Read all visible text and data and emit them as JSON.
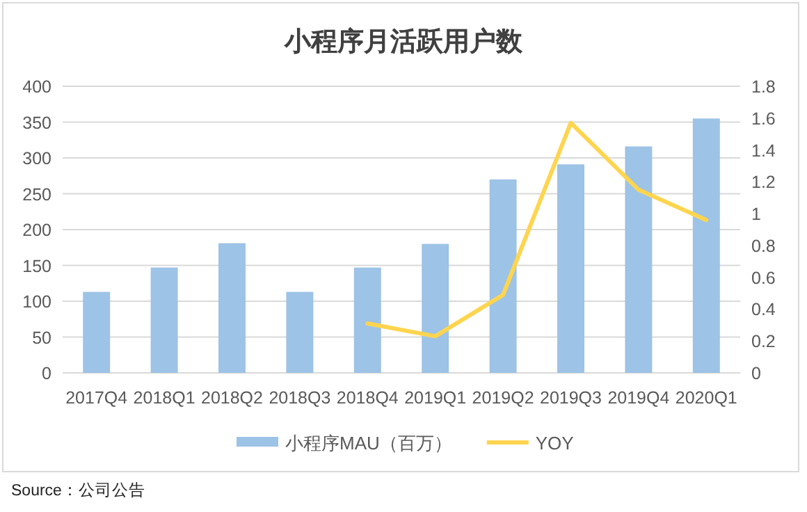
{
  "chart_data": {
    "type": "bar",
    "title": "小程序月活跃用户数",
    "categories": [
      "2017Q4",
      "2018Q1",
      "2018Q2",
      "2018Q3",
      "2018Q4",
      "2019Q1",
      "2019Q2",
      "2019Q3",
      "2019Q4",
      "2020Q1"
    ],
    "series": [
      {
        "name": "小程序MAU（百万）",
        "color": "#9dc3e6",
        "values": [
          113,
          147,
          181,
          113,
          147,
          180,
          270,
          291,
          316,
          355
        ]
      },
      {
        "name": "YOY",
        "type": "line",
        "axis": "y2",
        "color": "#ffd54f",
        "values": [
          null,
          null,
          null,
          null,
          0.31,
          0.23,
          0.49,
          1.57,
          1.15,
          0.96
        ]
      }
    ],
    "ylim": [
      0,
      400
    ],
    "yticks": [
      0,
      50,
      100,
      150,
      200,
      250,
      300,
      350,
      400
    ],
    "y2lim": [
      0,
      1.8
    ],
    "y2ticks": [
      0,
      0.2,
      0.4,
      0.6,
      0.8,
      1,
      1.2,
      1.4,
      1.6,
      1.8
    ],
    "grid": "y",
    "legend": "bottom",
    "annotations": [
      "Source：公司公告"
    ]
  }
}
